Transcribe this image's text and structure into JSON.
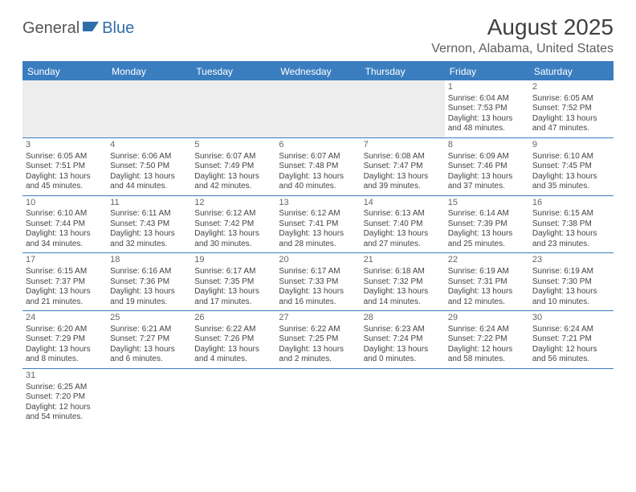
{
  "logo": {
    "text1": "General",
    "text2": "Blue"
  },
  "title": "August 2025",
  "location": "Vernon, Alabama, United States",
  "header_bg": "#3a7ebf",
  "header_color": "#ffffff",
  "border_color": "#3a7ebf",
  "empty_bg": "#ededed",
  "weekdays": [
    "Sunday",
    "Monday",
    "Tuesday",
    "Wednesday",
    "Thursday",
    "Friday",
    "Saturday"
  ],
  "weeks": [
    [
      {
        "blank": true
      },
      {
        "blank": true
      },
      {
        "blank": true
      },
      {
        "blank": true
      },
      {
        "blank": true
      },
      {
        "d": "1",
        "sr": "Sunrise: 6:04 AM",
        "ss": "Sunset: 7:53 PM",
        "dl1": "Daylight: 13 hours",
        "dl2": "and 48 minutes."
      },
      {
        "d": "2",
        "sr": "Sunrise: 6:05 AM",
        "ss": "Sunset: 7:52 PM",
        "dl1": "Daylight: 13 hours",
        "dl2": "and 47 minutes."
      }
    ],
    [
      {
        "d": "3",
        "sr": "Sunrise: 6:05 AM",
        "ss": "Sunset: 7:51 PM",
        "dl1": "Daylight: 13 hours",
        "dl2": "and 45 minutes."
      },
      {
        "d": "4",
        "sr": "Sunrise: 6:06 AM",
        "ss": "Sunset: 7:50 PM",
        "dl1": "Daylight: 13 hours",
        "dl2": "and 44 minutes."
      },
      {
        "d": "5",
        "sr": "Sunrise: 6:07 AM",
        "ss": "Sunset: 7:49 PM",
        "dl1": "Daylight: 13 hours",
        "dl2": "and 42 minutes."
      },
      {
        "d": "6",
        "sr": "Sunrise: 6:07 AM",
        "ss": "Sunset: 7:48 PM",
        "dl1": "Daylight: 13 hours",
        "dl2": "and 40 minutes."
      },
      {
        "d": "7",
        "sr": "Sunrise: 6:08 AM",
        "ss": "Sunset: 7:47 PM",
        "dl1": "Daylight: 13 hours",
        "dl2": "and 39 minutes."
      },
      {
        "d": "8",
        "sr": "Sunrise: 6:09 AM",
        "ss": "Sunset: 7:46 PM",
        "dl1": "Daylight: 13 hours",
        "dl2": "and 37 minutes."
      },
      {
        "d": "9",
        "sr": "Sunrise: 6:10 AM",
        "ss": "Sunset: 7:45 PM",
        "dl1": "Daylight: 13 hours",
        "dl2": "and 35 minutes."
      }
    ],
    [
      {
        "d": "10",
        "sr": "Sunrise: 6:10 AM",
        "ss": "Sunset: 7:44 PM",
        "dl1": "Daylight: 13 hours",
        "dl2": "and 34 minutes."
      },
      {
        "d": "11",
        "sr": "Sunrise: 6:11 AM",
        "ss": "Sunset: 7:43 PM",
        "dl1": "Daylight: 13 hours",
        "dl2": "and 32 minutes."
      },
      {
        "d": "12",
        "sr": "Sunrise: 6:12 AM",
        "ss": "Sunset: 7:42 PM",
        "dl1": "Daylight: 13 hours",
        "dl2": "and 30 minutes."
      },
      {
        "d": "13",
        "sr": "Sunrise: 6:12 AM",
        "ss": "Sunset: 7:41 PM",
        "dl1": "Daylight: 13 hours",
        "dl2": "and 28 minutes."
      },
      {
        "d": "14",
        "sr": "Sunrise: 6:13 AM",
        "ss": "Sunset: 7:40 PM",
        "dl1": "Daylight: 13 hours",
        "dl2": "and 27 minutes."
      },
      {
        "d": "15",
        "sr": "Sunrise: 6:14 AM",
        "ss": "Sunset: 7:39 PM",
        "dl1": "Daylight: 13 hours",
        "dl2": "and 25 minutes."
      },
      {
        "d": "16",
        "sr": "Sunrise: 6:15 AM",
        "ss": "Sunset: 7:38 PM",
        "dl1": "Daylight: 13 hours",
        "dl2": "and 23 minutes."
      }
    ],
    [
      {
        "d": "17",
        "sr": "Sunrise: 6:15 AM",
        "ss": "Sunset: 7:37 PM",
        "dl1": "Daylight: 13 hours",
        "dl2": "and 21 minutes."
      },
      {
        "d": "18",
        "sr": "Sunrise: 6:16 AM",
        "ss": "Sunset: 7:36 PM",
        "dl1": "Daylight: 13 hours",
        "dl2": "and 19 minutes."
      },
      {
        "d": "19",
        "sr": "Sunrise: 6:17 AM",
        "ss": "Sunset: 7:35 PM",
        "dl1": "Daylight: 13 hours",
        "dl2": "and 17 minutes."
      },
      {
        "d": "20",
        "sr": "Sunrise: 6:17 AM",
        "ss": "Sunset: 7:33 PM",
        "dl1": "Daylight: 13 hours",
        "dl2": "and 16 minutes."
      },
      {
        "d": "21",
        "sr": "Sunrise: 6:18 AM",
        "ss": "Sunset: 7:32 PM",
        "dl1": "Daylight: 13 hours",
        "dl2": "and 14 minutes."
      },
      {
        "d": "22",
        "sr": "Sunrise: 6:19 AM",
        "ss": "Sunset: 7:31 PM",
        "dl1": "Daylight: 13 hours",
        "dl2": "and 12 minutes."
      },
      {
        "d": "23",
        "sr": "Sunrise: 6:19 AM",
        "ss": "Sunset: 7:30 PM",
        "dl1": "Daylight: 13 hours",
        "dl2": "and 10 minutes."
      }
    ],
    [
      {
        "d": "24",
        "sr": "Sunrise: 6:20 AM",
        "ss": "Sunset: 7:29 PM",
        "dl1": "Daylight: 13 hours",
        "dl2": "and 8 minutes."
      },
      {
        "d": "25",
        "sr": "Sunrise: 6:21 AM",
        "ss": "Sunset: 7:27 PM",
        "dl1": "Daylight: 13 hours",
        "dl2": "and 6 minutes."
      },
      {
        "d": "26",
        "sr": "Sunrise: 6:22 AM",
        "ss": "Sunset: 7:26 PM",
        "dl1": "Daylight: 13 hours",
        "dl2": "and 4 minutes."
      },
      {
        "d": "27",
        "sr": "Sunrise: 6:22 AM",
        "ss": "Sunset: 7:25 PM",
        "dl1": "Daylight: 13 hours",
        "dl2": "and 2 minutes."
      },
      {
        "d": "28",
        "sr": "Sunrise: 6:23 AM",
        "ss": "Sunset: 7:24 PM",
        "dl1": "Daylight: 13 hours",
        "dl2": "and 0 minutes."
      },
      {
        "d": "29",
        "sr": "Sunrise: 6:24 AM",
        "ss": "Sunset: 7:22 PM",
        "dl1": "Daylight: 12 hours",
        "dl2": "and 58 minutes."
      },
      {
        "d": "30",
        "sr": "Sunrise: 6:24 AM",
        "ss": "Sunset: 7:21 PM",
        "dl1": "Daylight: 12 hours",
        "dl2": "and 56 minutes."
      }
    ],
    [
      {
        "d": "31",
        "sr": "Sunrise: 6:25 AM",
        "ss": "Sunset: 7:20 PM",
        "dl1": "Daylight: 12 hours",
        "dl2": "and 54 minutes."
      },
      {
        "blank": true,
        "trailing": true
      },
      {
        "blank": true,
        "trailing": true
      },
      {
        "blank": true,
        "trailing": true
      },
      {
        "blank": true,
        "trailing": true
      },
      {
        "blank": true,
        "trailing": true
      },
      {
        "blank": true,
        "trailing": true
      }
    ]
  ]
}
